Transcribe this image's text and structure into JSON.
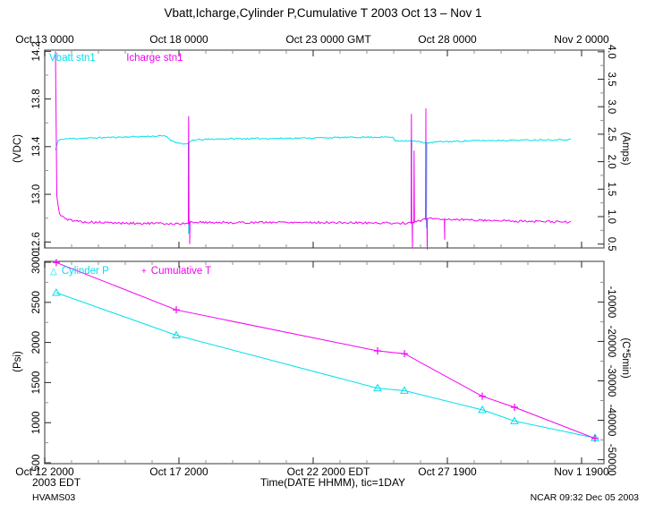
{
  "title": "Vbatt,Icharge,Cylinder P,Cumulative T 2003 Oct 13 – Nov 1",
  "texts": {
    "origin_label": "2003 EDT",
    "x_title": "Time(DATE HHMM), tic=1DAY",
    "project": "HVAMS03",
    "credit": "NCAR 09:32 Dec 05 2003"
  },
  "colors": {
    "cyan": "#00e0ec",
    "magenta": "#f400f4",
    "frame": "#6e6e6e",
    "major_tick": "#222222",
    "minor_tick": "#909090",
    "text": "#000000"
  },
  "chart_data": {
    "type": "line",
    "x": {
      "title": "Time(DATE HHMM), tic=1DAY",
      "day_range": [
        0,
        20.83
      ],
      "major_days": [
        0,
        5,
        10,
        15,
        20
      ],
      "minor_step_days": 1,
      "top_labels": [
        "Oct 13 0000",
        "Oct 18 0000",
        "Oct 23 0000 GMT",
        "Oct 28 0000",
        "Nov 2 0000"
      ],
      "bottom_labels": [
        "Oct 12 2000",
        "Oct 17 2000",
        "Oct 22 2000 EDT",
        "Oct 27 1900",
        "Nov 1 1900"
      ]
    },
    "panels": [
      {
        "id": "top",
        "left_axis": {
          "label": "(VDC)",
          "range": [
            12.55,
            14.21
          ],
          "ticks": [
            14.2,
            13.8,
            13.4,
            13.0,
            12.6
          ],
          "minor_ticks": [
            14.0,
            13.6,
            13.2,
            12.8
          ],
          "fmt": "f1"
        },
        "right_axis": {
          "label": "(Amps)",
          "range": [
            0.43,
            4.03
          ],
          "ticks": [
            4.0,
            3.5,
            3.0,
            2.5,
            2.0,
            1.5,
            1.0,
            0.5
          ],
          "minor_ticks": [
            3.75,
            3.25,
            2.75,
            2.25,
            1.75,
            1.25,
            0.75
          ],
          "fmt": "f1"
        },
        "series": [
          {
            "name": "Vbatt stn1",
            "color": "#00e0ec",
            "axis": "left",
            "style": "noisy-line",
            "seed": 11,
            "noise": 0.006,
            "base": [
              [
                0.4,
                13.37
              ],
              [
                0.5,
                13.45
              ],
              [
                0.7,
                13.465
              ],
              [
                2.0,
                13.475
              ],
              [
                4.4,
                13.49
              ],
              [
                4.55,
                13.485
              ],
              [
                4.72,
                13.45
              ],
              [
                5.0,
                13.43
              ],
              [
                5.3,
                13.42
              ],
              [
                5.5,
                13.455
              ],
              [
                6.5,
                13.465
              ],
              [
                9.0,
                13.47
              ],
              [
                12.0,
                13.48
              ],
              [
                12.95,
                13.48
              ],
              [
                13.05,
                13.45
              ],
              [
                13.6,
                13.45
              ],
              [
                14.35,
                13.43
              ],
              [
                14.6,
                13.44
              ],
              [
                16.0,
                13.45
              ],
              [
                18.0,
                13.455
              ],
              [
                19.6,
                13.46
              ]
            ],
            "spikes": [
              [
                5.36,
                12.67
              ],
              [
                13.66,
                12.75
              ],
              [
                14.22,
                12.72
              ]
            ]
          },
          {
            "name": "Icharge stn1",
            "color": "#f400f4",
            "axis": "right",
            "style": "noisy-line",
            "seed": 5,
            "noise": 0.02,
            "base": [
              [
                0.4,
                4.0
              ],
              [
                0.44,
                1.4
              ],
              [
                0.55,
                1.05
              ],
              [
                0.8,
                0.95
              ],
              [
                1.5,
                0.9
              ],
              [
                3.0,
                0.88
              ],
              [
                5.3,
                0.87
              ],
              [
                5.5,
                0.9
              ],
              [
                7.0,
                0.89
              ],
              [
                9.0,
                0.9
              ],
              [
                11.0,
                0.89
              ],
              [
                13.6,
                0.88
              ],
              [
                14.35,
                0.97
              ],
              [
                15.0,
                0.95
              ],
              [
                16.0,
                0.94
              ],
              [
                17.5,
                0.92
              ],
              [
                19.6,
                0.9
              ]
            ],
            "spikes": [
              [
                5.36,
                2.83
              ],
              [
                5.4,
                0.5
              ],
              [
                13.66,
                2.87
              ],
              [
                13.7,
                0.42
              ],
              [
                13.76,
                2.2
              ],
              [
                14.2,
                2.97
              ],
              [
                14.25,
                0.4
              ],
              [
                14.9,
                0.58
              ]
            ]
          }
        ]
      },
      {
        "id": "bottom",
        "left_axis": {
          "label": "(Psi)",
          "range": [
            489,
            3011
          ],
          "ticks": [
            3000,
            2500,
            2000,
            1500,
            1000,
            500
          ],
          "minor_ticks": [
            2750,
            2250,
            1750,
            1250,
            750
          ],
          "fmt": "int"
        },
        "right_axis": {
          "label": "(C*5min)",
          "range": [
            -51000,
            300
          ],
          "ticks": [
            -10000,
            -20000,
            -30000,
            -40000,
            -50000
          ],
          "minor_ticks": [
            -5000,
            -15000,
            -25000,
            -35000,
            -45000
          ],
          "fmt": "int"
        },
        "series": [
          {
            "name": "Cylinder P",
            "glyph": "△",
            "marker": "triangle",
            "color": "#00e0ec",
            "axis": "left",
            "style": "marker-line",
            "points": [
              [
                0.43,
                2620
              ],
              [
                4.9,
                2090
              ],
              [
                12.4,
                1430
              ],
              [
                13.4,
                1400
              ],
              [
                16.3,
                1160
              ],
              [
                17.5,
                1020
              ],
              [
                20.5,
                810
              ]
            ]
          },
          {
            "name": "Cumulative T",
            "glyph": "+",
            "marker": "plus",
            "color": "#f400f4",
            "axis": "right",
            "style": "marker-line",
            "points": [
              [
                0.43,
                0
              ],
              [
                4.9,
                -12000
              ],
              [
                12.4,
                -22400
              ],
              [
                13.4,
                -23100
              ],
              [
                16.3,
                -33900
              ],
              [
                17.5,
                -36700
              ],
              [
                20.5,
                -44600
              ]
            ]
          }
        ]
      }
    ]
  }
}
